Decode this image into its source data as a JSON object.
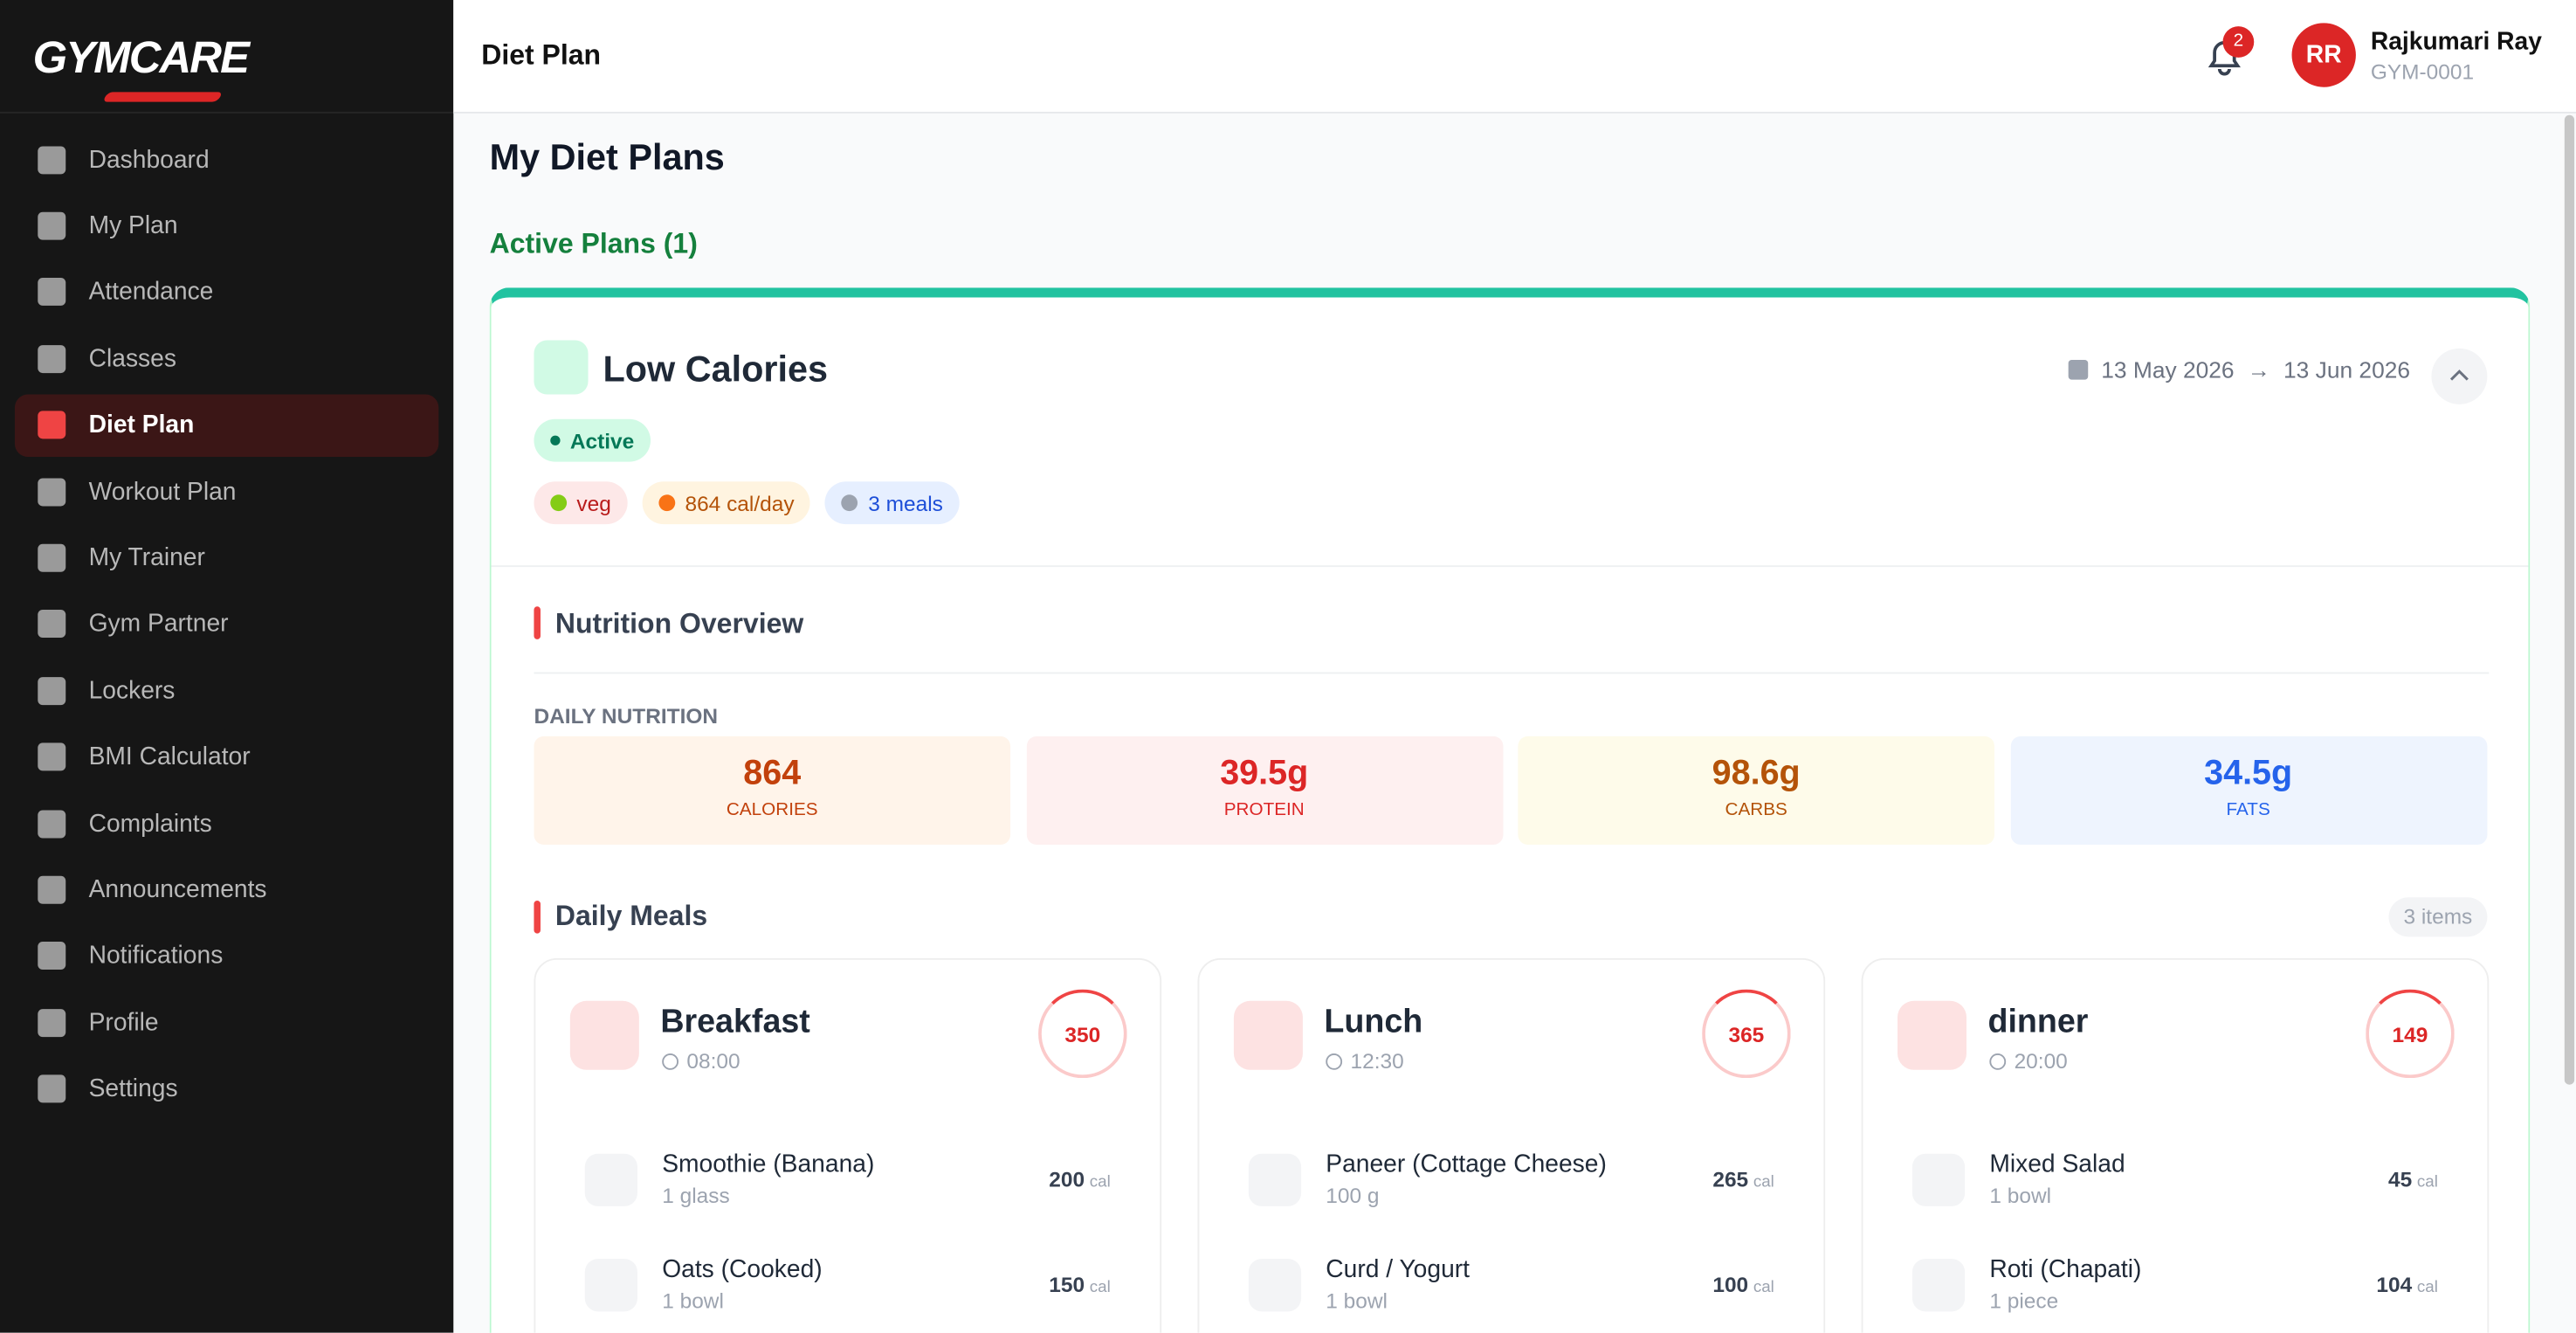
{
  "brand": {
    "logo": "GYMCARE"
  },
  "sidebar": {
    "items": [
      {
        "label": "Dashboard"
      },
      {
        "label": "My Plan"
      },
      {
        "label": "Attendance"
      },
      {
        "label": "Classes"
      },
      {
        "label": "Diet Plan",
        "active": true
      },
      {
        "label": "Workout Plan"
      },
      {
        "label": "My Trainer"
      },
      {
        "label": "Gym Partner"
      },
      {
        "label": "Lockers"
      },
      {
        "label": "BMI Calculator"
      },
      {
        "label": "Complaints"
      },
      {
        "label": "Announcements"
      },
      {
        "label": "Notifications"
      },
      {
        "label": "Profile"
      },
      {
        "label": "Settings"
      }
    ]
  },
  "header": {
    "title": "Diet Plan",
    "notifications": "2",
    "user_initials": "RR",
    "user_name": "Rajkumari Ray",
    "user_id": "GYM-0001"
  },
  "page": {
    "title": "My Diet Plans",
    "section": "Active Plans (1)"
  },
  "plan": {
    "name": "Low Calories",
    "status": "Active",
    "start": "13 May 2026",
    "date_separator": "→",
    "end": "13 Jun 2026",
    "tags": [
      "veg",
      "864 cal/day",
      "3 meals"
    ],
    "nutrition_title": "Nutrition Overview",
    "daily_label": "DAILY NUTRITION",
    "nutrition": [
      {
        "value": "864",
        "label": "CALORIES"
      },
      {
        "value": "39.5g",
        "label": "PROTEIN"
      },
      {
        "value": "98.6g",
        "label": "CARBS"
      },
      {
        "value": "34.5g",
        "label": "FATS"
      }
    ],
    "meals_title": "Daily Meals",
    "meals_count": "3 items",
    "meals": [
      {
        "name": "Breakfast",
        "time": "08:00",
        "calories": "350",
        "items": [
          {
            "name": "Smoothie (Banana)",
            "qty": "1 glass",
            "calories": "200",
            "unit": "cal"
          },
          {
            "name": "Oats (Cooked)",
            "qty": "1 bowl",
            "calories": "150",
            "unit": "cal"
          }
        ]
      },
      {
        "name": "Lunch",
        "time": "12:30",
        "calories": "365",
        "items": [
          {
            "name": "Paneer (Cottage Cheese)",
            "qty": "100 g",
            "calories": "265",
            "unit": "cal"
          },
          {
            "name": "Curd / Yogurt",
            "qty": "1 bowl",
            "calories": "100",
            "unit": "cal"
          }
        ]
      },
      {
        "name": "dinner",
        "time": "20:00",
        "calories": "149",
        "items": [
          {
            "name": "Mixed Salad",
            "qty": "1 bowl",
            "calories": "45",
            "unit": "cal"
          },
          {
            "name": "Roti (Chapati)",
            "qty": "1 piece",
            "calories": "104",
            "unit": "cal"
          }
        ]
      }
    ]
  }
}
